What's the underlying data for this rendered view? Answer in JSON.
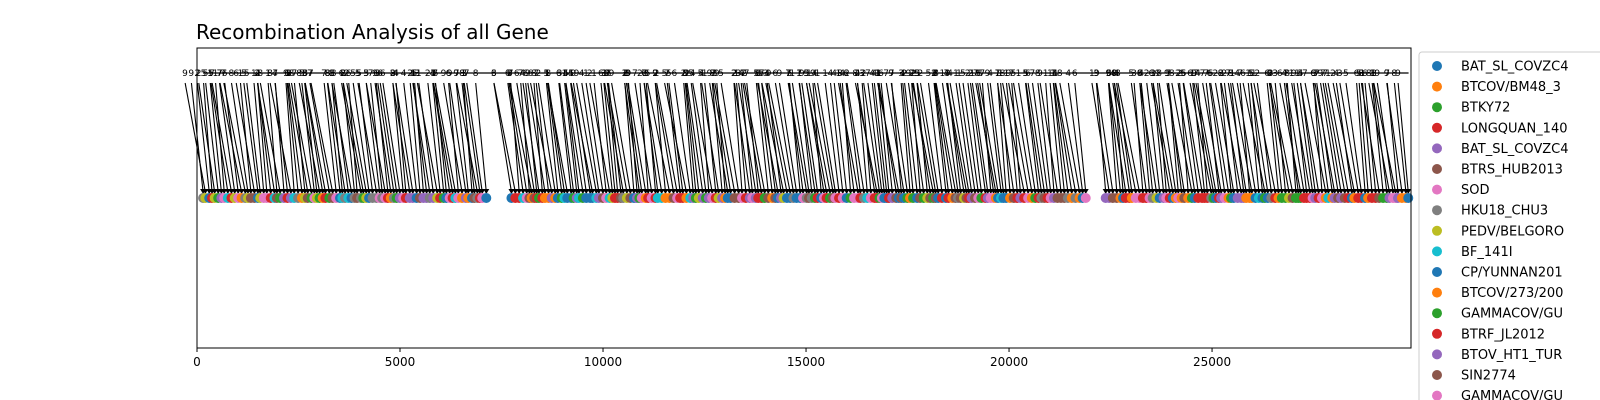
{
  "chart_data": {
    "type": "scatter",
    "title": "Recombination Analysis of all Gene",
    "xlabel": "",
    "ylabel": "",
    "xlim": [
      0,
      29900
    ],
    "xticks": [
      0,
      5000,
      10000,
      15000,
      20000,
      25000
    ],
    "grid": false,
    "legend_position": "right, outside plot",
    "palette": [
      "#1f77b4",
      "#ff7f0e",
      "#2ca02c",
      "#d62728",
      "#9467bd",
      "#8c564b",
      "#e377c2",
      "#7f7f7f",
      "#bcbd22",
      "#17becf"
    ],
    "series": [
      {
        "name": "BAT_SL_COVZC4",
        "color": "#1f77b4"
      },
      {
        "name": "BTCOV/BM48_3",
        "color": "#ff7f0e"
      },
      {
        "name": "BTKY72",
        "color": "#2ca02c"
      },
      {
        "name": "LONGQUAN_140",
        "color": "#d62728"
      },
      {
        "name": "BAT_SL_COVZC4",
        "color": "#9467bd"
      },
      {
        "name": "BTRS_HUB2013",
        "color": "#8c564b"
      },
      {
        "name": "SOD",
        "color": "#e377c2"
      },
      {
        "name": "HKU18_CHU3",
        "color": "#7f7f7f"
      },
      {
        "name": "PEDV/BELGORO",
        "color": "#bcbd22"
      },
      {
        "name": "BF_141I",
        "color": "#17becf"
      },
      {
        "name": "CP/YUNNAN201",
        "color": "#1f77b4"
      },
      {
        "name": "BTCOV/273/200",
        "color": "#ff7f0e"
      },
      {
        "name": "GAMMACOV/GU",
        "color": "#2ca02c"
      },
      {
        "name": "BTRF_JL2012",
        "color": "#d62728"
      },
      {
        "name": "BTOV_HT1_TUR",
        "color": "#9467bd"
      },
      {
        "name": "SIN2774",
        "color": "#8c564b"
      },
      {
        "name": "GAMMACOV/GU",
        "color": "#e377c2"
      }
    ],
    "gaps": [
      [
        7150,
        7650
      ],
      [
        21900,
        22300
      ]
    ],
    "points_per_series": 22
  }
}
